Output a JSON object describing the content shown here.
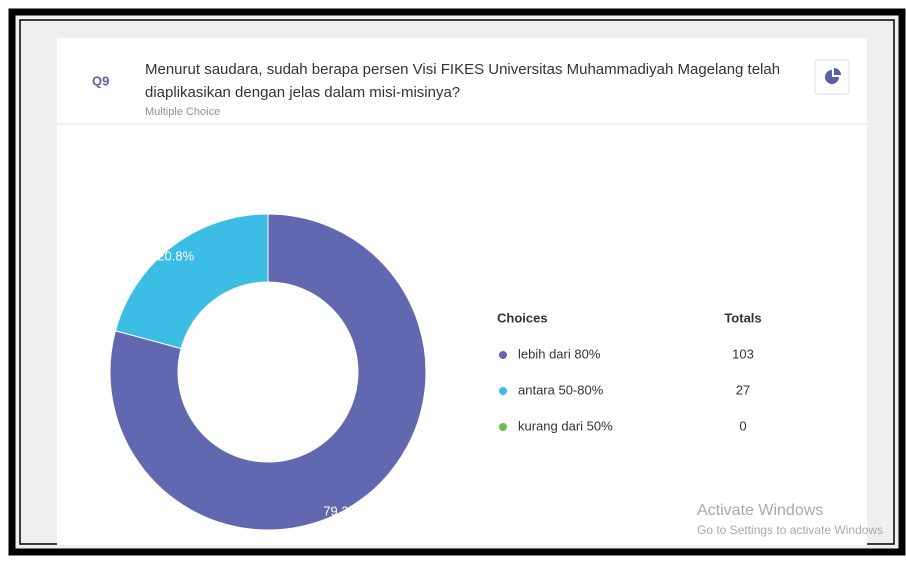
{
  "question": {
    "number": "Q9",
    "text_lines": [
      "Menurut saudara, sudah berapa persen Visi FIKES Universitas Muhammadiyah Magelang telah",
      "diaplikasikan dengan jelas dalam misi-misinya?"
    ],
    "kind": "Multiple Choice"
  },
  "chart_data": {
    "type": "donut",
    "categories": [
      "lebih dari 80%",
      "antara 50-80%",
      "kurang dari 50%"
    ],
    "values": [
      79.2,
      20.8,
      0
    ],
    "value_labels": [
      "79.2%",
      "20.8%",
      null
    ],
    "colors": [
      "#6268b0",
      "#3bbde6",
      "#6cc04a"
    ],
    "legend_headers": [
      "Choices",
      "Totals"
    ],
    "totals": [
      103,
      27,
      0
    ]
  },
  "watermark": {
    "title": "Activate Windows",
    "subtitle": "Go to Settings to activate Windows"
  }
}
